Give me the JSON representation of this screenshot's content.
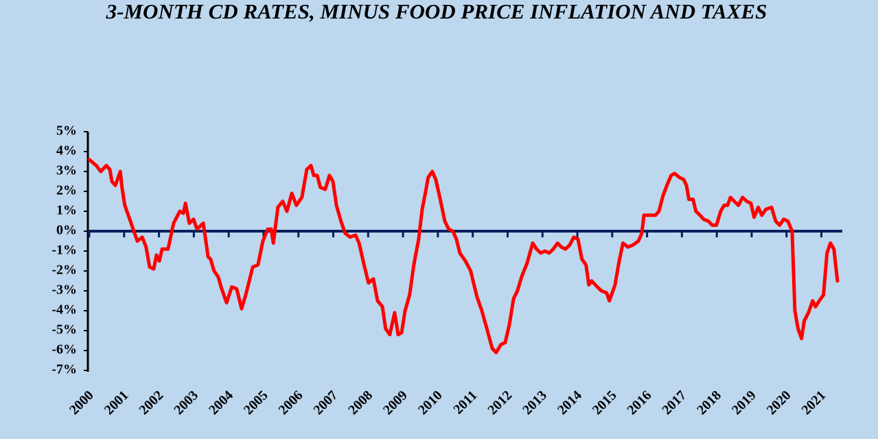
{
  "chart_data": {
    "type": "line",
    "title": "3-MONTH CD RATES, MINUS FOOD PRICE INFLATION AND TAXES",
    "x": [
      2000.0,
      2000.2,
      2000.33,
      2000.49,
      2000.59,
      2000.65,
      2000.75,
      2000.89,
      2000.94,
      2001.02,
      2001.22,
      2001.38,
      2001.52,
      2001.63,
      2001.73,
      2001.85,
      2001.93,
      2002.01,
      2002.09,
      2002.26,
      2002.42,
      2002.6,
      2002.7,
      2002.76,
      2002.87,
      2002.99,
      2003.09,
      2003.27,
      2003.41,
      2003.48,
      2003.58,
      2003.7,
      2003.78,
      2003.94,
      2004.09,
      2004.23,
      2004.37,
      2004.49,
      2004.69,
      2004.84,
      2004.98,
      2005.12,
      2005.22,
      2005.28,
      2005.41,
      2005.55,
      2005.67,
      2005.81,
      2005.94,
      2006.1,
      2006.24,
      2006.36,
      2006.44,
      2006.54,
      2006.63,
      2006.77,
      2006.89,
      2006.99,
      2007.09,
      2007.22,
      2007.34,
      2007.48,
      2007.64,
      2007.74,
      2007.87,
      2008.01,
      2008.15,
      2008.27,
      2008.41,
      2008.5,
      2008.62,
      2008.76,
      2008.86,
      2008.96,
      2009.06,
      2009.19,
      2009.31,
      2009.45,
      2009.55,
      2009.65,
      2009.72,
      2009.84,
      2009.94,
      2010.08,
      2010.2,
      2010.31,
      2010.43,
      2010.53,
      2010.63,
      2010.79,
      2010.94,
      2011.12,
      2011.26,
      2011.42,
      2011.56,
      2011.67,
      2011.81,
      2011.93,
      2012.05,
      2012.17,
      2012.28,
      2012.4,
      2012.56,
      2012.72,
      2012.83,
      2012.95,
      2013.07,
      2013.19,
      2013.31,
      2013.43,
      2013.54,
      2013.66,
      2013.78,
      2013.9,
      2014.02,
      2014.13,
      2014.25,
      2014.33,
      2014.41,
      2014.57,
      2014.69,
      2014.84,
      2014.92,
      2015.08,
      2015.2,
      2015.31,
      2015.45,
      2015.59,
      2015.75,
      2015.85,
      2015.91,
      2016.06,
      2016.24,
      2016.34,
      2016.46,
      2016.57,
      2016.69,
      2016.79,
      2016.93,
      2017.05,
      2017.13,
      2017.2,
      2017.32,
      2017.4,
      2017.52,
      2017.62,
      2017.76,
      2017.87,
      2017.99,
      2018.11,
      2018.21,
      2018.31,
      2018.39,
      2018.5,
      2018.62,
      2018.74,
      2018.86,
      2018.98,
      2019.07,
      2019.19,
      2019.29,
      2019.41,
      2019.57,
      2019.69,
      2019.8,
      2019.92,
      2020.04,
      2020.16,
      2020.24,
      2020.33,
      2020.43,
      2020.51,
      2020.63,
      2020.75,
      2020.83,
      2020.94,
      2021.06,
      2021.16,
      2021.26,
      2021.36,
      2021.46
    ],
    "series": [
      {
        "color": "#ff0000",
        "values": [
          3.6,
          3.3,
          3.0,
          3.3,
          3.1,
          2.5,
          2.3,
          3.0,
          2.2,
          1.3,
          0.3,
          -0.5,
          -0.3,
          -0.8,
          -1.8,
          -1.9,
          -1.2,
          -1.5,
          -0.9,
          -0.9,
          0.4,
          1.0,
          0.9,
          1.4,
          0.4,
          0.6,
          0.1,
          0.4,
          -1.3,
          -1.4,
          -2.0,
          -2.3,
          -2.8,
          -3.6,
          -2.8,
          -2.9,
          -3.9,
          -3.2,
          -1.8,
          -1.7,
          -0.5,
          0.1,
          0.1,
          -0.6,
          1.2,
          1.5,
          1.0,
          1.9,
          1.3,
          1.7,
          3.1,
          3.3,
          2.8,
          2.8,
          2.2,
          2.1,
          2.8,
          2.5,
          1.3,
          0.5,
          -0.1,
          -0.3,
          -0.2,
          -0.6,
          -1.6,
          -2.6,
          -2.4,
          -3.5,
          -3.8,
          -4.9,
          -5.2,
          -4.1,
          -5.2,
          -5.1,
          -4.0,
          -3.2,
          -1.7,
          -0.4,
          1.1,
          2.0,
          2.7,
          3.0,
          2.6,
          1.5,
          0.5,
          0.1,
          0.0,
          -0.4,
          -1.1,
          -1.5,
          -2.0,
          -3.3,
          -4.0,
          -5.0,
          -5.9,
          -6.1,
          -5.7,
          -5.6,
          -4.7,
          -3.4,
          -3.0,
          -2.3,
          -1.6,
          -0.6,
          -0.9,
          -1.1,
          -1.0,
          -1.1,
          -0.9,
          -0.6,
          -0.8,
          -0.9,
          -0.7,
          -0.3,
          -0.4,
          -1.4,
          -1.7,
          -2.7,
          -2.5,
          -2.8,
          -3.0,
          -3.1,
          -3.5,
          -2.7,
          -1.5,
          -0.6,
          -0.8,
          -0.7,
          -0.5,
          -0.1,
          0.8,
          0.8,
          0.8,
          1.0,
          1.8,
          2.3,
          2.8,
          2.9,
          2.7,
          2.6,
          2.3,
          1.6,
          1.6,
          1.0,
          0.8,
          0.6,
          0.5,
          0.3,
          0.3,
          1.0,
          1.3,
          1.3,
          1.7,
          1.5,
          1.3,
          1.7,
          1.5,
          1.4,
          0.7,
          1.2,
          0.8,
          1.1,
          1.2,
          0.5,
          0.3,
          0.6,
          0.5,
          0.0,
          -4.0,
          -4.9,
          -5.4,
          -4.5,
          -4.1,
          -3.5,
          -3.8,
          -3.5,
          -3.2,
          -1.1,
          -0.6,
          -0.9,
          -2.5
        ]
      }
    ],
    "xlim": [
      2000,
      2021.6
    ],
    "xticks": [
      2000,
      2001,
      2002,
      2003,
      2004,
      2005,
      2006,
      2007,
      2008,
      2009,
      2010,
      2011,
      2012,
      2013,
      2014,
      2015,
      2016,
      2017,
      2018,
      2019,
      2020,
      2021
    ],
    "ylim": [
      -7,
      5
    ],
    "yticks": [
      {
        "value": 5,
        "label": "5%"
      },
      {
        "value": 4,
        "label": "4%"
      },
      {
        "value": 3,
        "label": "3%"
      },
      {
        "value": 2,
        "label": "2%"
      },
      {
        "value": 1,
        "label": "1%"
      },
      {
        "value": 0,
        "label": "0%"
      },
      {
        "value": -1,
        "label": "-1%"
      },
      {
        "value": -2,
        "label": "-2%"
      },
      {
        "value": -3,
        "label": "-3%"
      },
      {
        "value": -4,
        "label": "-4%"
      },
      {
        "value": -5,
        "label": "-5%"
      },
      {
        "value": -6,
        "label": "-6%"
      },
      {
        "value": -7,
        "label": "-7%"
      }
    ],
    "axis_color": "#002060"
  }
}
